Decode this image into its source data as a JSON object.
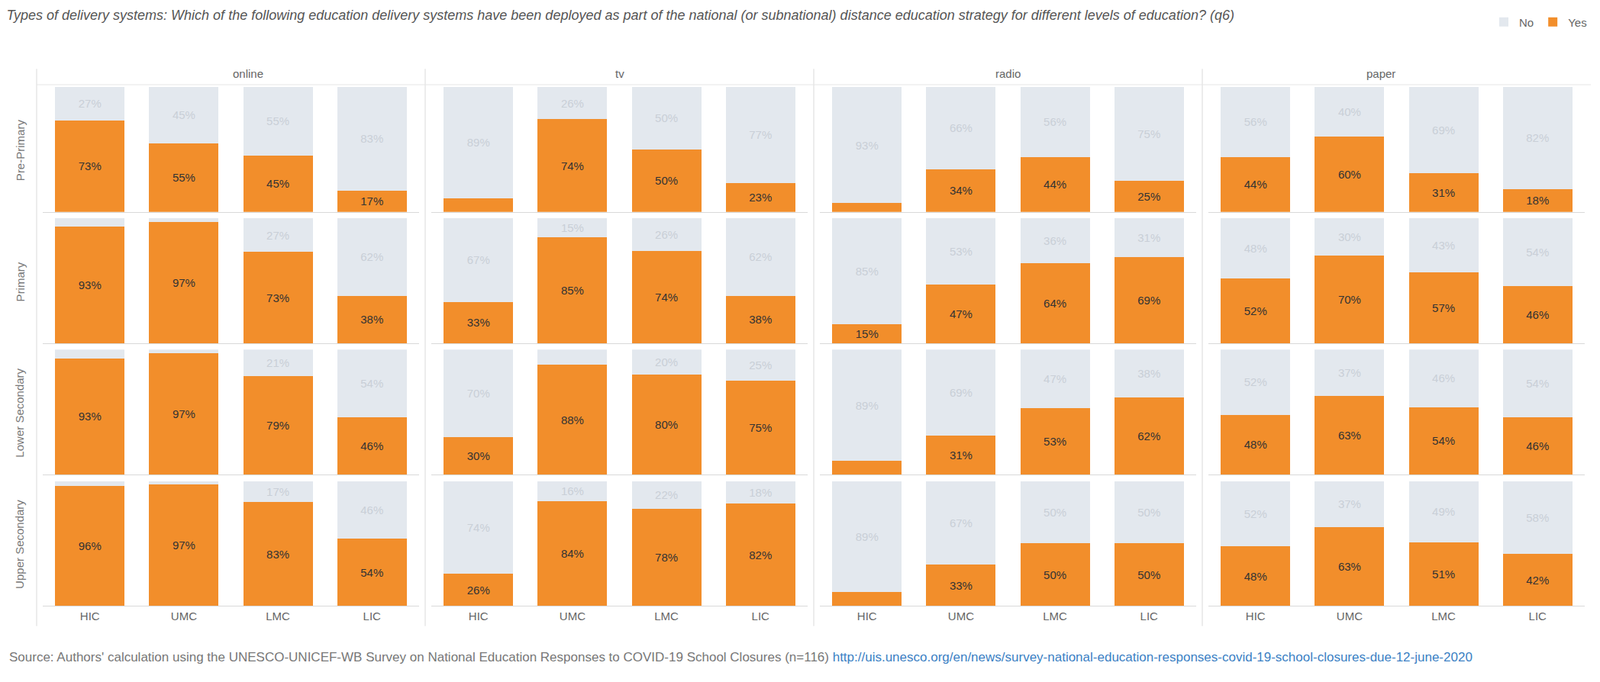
{
  "chart_data": {
    "type": "bar",
    "title": "Types of delivery systems: Which of the following education delivery systems have been deployed as part of the national (or subnational) distance education strategy for different levels of education? (q6)",
    "source": "Source: Authors' calculation using the UNESCO-UNICEF-WB Survey on National Education Responses to COVID-19 School Closures (n=116)",
    "source_link": "http://uis.unesco.org/en/news/survey-national-education-responses-covid-19-school-closures-due-12-june-2020",
    "stacked": true,
    "data_labels": true,
    "legend": "top right",
    "grid": false,
    "tick_labels": "x",
    "ylim": [
      0,
      100
    ],
    "categories": [
      "HIC",
      "UMC",
      "LMC",
      "LIC"
    ],
    "facet_rows": [
      "Pre-Primary",
      "Primary",
      "Lower Secondary",
      "Upper Secondary"
    ],
    "facet_columns": [
      "online",
      "tv",
      "radio",
      "paper"
    ],
    "panels": [
      {
        "row": "Pre-Primary",
        "column": "online",
        "series": [
          {
            "name": "Yes",
            "color": "#f28e2b",
            "values": [
              73,
              55,
              45,
              17
            ],
            "value_labels": [
              "73%",
              "55%",
              "45%",
              "17%"
            ]
          },
          {
            "name": "No",
            "color": "#e3e8ee",
            "values": [
              27,
              45,
              55,
              83
            ],
            "value_labels": [
              "27%",
              "45%",
              "55%",
              "83%"
            ]
          }
        ]
      },
      {
        "row": "Pre-Primary",
        "column": "tv",
        "series": [
          {
            "name": "Yes",
            "color": "#f28e2b",
            "values": [
              11,
              74,
              50,
              23
            ],
            "value_labels": [
              null,
              "74%",
              "50%",
              "23%"
            ]
          },
          {
            "name": "No",
            "color": "#e3e8ee",
            "values": [
              89,
              26,
              50,
              77
            ],
            "value_labels": [
              "89%",
              "26%",
              "50%",
              "77%"
            ]
          }
        ]
      },
      {
        "row": "Pre-Primary",
        "column": "radio",
        "series": [
          {
            "name": "Yes",
            "color": "#f28e2b",
            "values": [
              7,
              34,
              44,
              25
            ],
            "value_labels": [
              null,
              "34%",
              "44%",
              "25%"
            ]
          },
          {
            "name": "No",
            "color": "#e3e8ee",
            "values": [
              93,
              66,
              56,
              75
            ],
            "value_labels": [
              "93%",
              "66%",
              "56%",
              "75%"
            ]
          }
        ]
      },
      {
        "row": "Pre-Primary",
        "column": "paper",
        "series": [
          {
            "name": "Yes",
            "color": "#f28e2b",
            "values": [
              44,
              60,
              31,
              18
            ],
            "value_labels": [
              "44%",
              "60%",
              "31%",
              "18%"
            ]
          },
          {
            "name": "No",
            "color": "#e3e8ee",
            "values": [
              56,
              40,
              69,
              82
            ],
            "value_labels": [
              "56%",
              "40%",
              "69%",
              "82%"
            ]
          }
        ]
      },
      {
        "row": "Primary",
        "column": "online",
        "series": [
          {
            "name": "Yes",
            "color": "#f28e2b",
            "values": [
              93,
              97,
              73,
              38
            ],
            "value_labels": [
              "93%",
              "97%",
              "73%",
              "38%"
            ]
          },
          {
            "name": "No",
            "color": "#e3e8ee",
            "values": [
              7,
              3,
              27,
              62
            ],
            "value_labels": [
              null,
              null,
              "27%",
              "62%"
            ]
          }
        ]
      },
      {
        "row": "Primary",
        "column": "tv",
        "series": [
          {
            "name": "Yes",
            "color": "#f28e2b",
            "values": [
              33,
              85,
              74,
              38
            ],
            "value_labels": [
              "33%",
              "85%",
              "74%",
              "38%"
            ]
          },
          {
            "name": "No",
            "color": "#e3e8ee",
            "values": [
              67,
              15,
              26,
              62
            ],
            "value_labels": [
              "67%",
              "15%",
              "26%",
              "62%"
            ]
          }
        ]
      },
      {
        "row": "Primary",
        "column": "radio",
        "series": [
          {
            "name": "Yes",
            "color": "#f28e2b",
            "values": [
              15,
              47,
              64,
              69
            ],
            "value_labels": [
              "15%",
              "47%",
              "64%",
              "69%"
            ]
          },
          {
            "name": "No",
            "color": "#e3e8ee",
            "values": [
              85,
              53,
              36,
              31
            ],
            "value_labels": [
              "85%",
              "53%",
              "36%",
              "31%"
            ]
          }
        ]
      },
      {
        "row": "Primary",
        "column": "paper",
        "series": [
          {
            "name": "Yes",
            "color": "#f28e2b",
            "values": [
              52,
              70,
              57,
              46
            ],
            "value_labels": [
              "52%",
              "70%",
              "57%",
              "46%"
            ]
          },
          {
            "name": "No",
            "color": "#e3e8ee",
            "values": [
              48,
              30,
              43,
              54
            ],
            "value_labels": [
              "48%",
              "30%",
              "43%",
              "54%"
            ]
          }
        ]
      },
      {
        "row": "Lower Secondary",
        "column": "online",
        "series": [
          {
            "name": "Yes",
            "color": "#f28e2b",
            "values": [
              93,
              97,
              79,
              46
            ],
            "value_labels": [
              "93%",
              "97%",
              "79%",
              "46%"
            ]
          },
          {
            "name": "No",
            "color": "#e3e8ee",
            "values": [
              7,
              3,
              21,
              54
            ],
            "value_labels": [
              null,
              null,
              "21%",
              "54%"
            ]
          }
        ]
      },
      {
        "row": "Lower Secondary",
        "column": "tv",
        "series": [
          {
            "name": "Yes",
            "color": "#f28e2b",
            "values": [
              30,
              88,
              80,
              75
            ],
            "value_labels": [
              "30%",
              "88%",
              "80%",
              "75%"
            ]
          },
          {
            "name": "No",
            "color": "#e3e8ee",
            "values": [
              70,
              12,
              20,
              25
            ],
            "value_labels": [
              "70%",
              null,
              "20%",
              "25%"
            ]
          }
        ]
      },
      {
        "row": "Lower Secondary",
        "column": "radio",
        "series": [
          {
            "name": "Yes",
            "color": "#f28e2b",
            "values": [
              11,
              31,
              53,
              62
            ],
            "value_labels": [
              null,
              "31%",
              "53%",
              "62%"
            ]
          },
          {
            "name": "No",
            "color": "#e3e8ee",
            "values": [
              89,
              69,
              47,
              38
            ],
            "value_labels": [
              "89%",
              "69%",
              "47%",
              "38%"
            ]
          }
        ]
      },
      {
        "row": "Lower Secondary",
        "column": "paper",
        "series": [
          {
            "name": "Yes",
            "color": "#f28e2b",
            "values": [
              48,
              63,
              54,
              46
            ],
            "value_labels": [
              "48%",
              "63%",
              "54%",
              "46%"
            ]
          },
          {
            "name": "No",
            "color": "#e3e8ee",
            "values": [
              52,
              37,
              46,
              54
            ],
            "value_labels": [
              "52%",
              "37%",
              "46%",
              "54%"
            ]
          }
        ]
      },
      {
        "row": "Upper Secondary",
        "column": "online",
        "series": [
          {
            "name": "Yes",
            "color": "#f28e2b",
            "values": [
              96,
              97,
              83,
              54
            ],
            "value_labels": [
              "96%",
              "97%",
              "83%",
              "54%"
            ]
          },
          {
            "name": "No",
            "color": "#e3e8ee",
            "values": [
              4,
              3,
              17,
              46
            ],
            "value_labels": [
              null,
              null,
              "17%",
              "46%"
            ]
          }
        ]
      },
      {
        "row": "Upper Secondary",
        "column": "tv",
        "series": [
          {
            "name": "Yes",
            "color": "#f28e2b",
            "values": [
              26,
              84,
              78,
              82
            ],
            "value_labels": [
              "26%",
              "84%",
              "78%",
              "82%"
            ]
          },
          {
            "name": "No",
            "color": "#e3e8ee",
            "values": [
              74,
              16,
              22,
              18
            ],
            "value_labels": [
              "74%",
              "16%",
              "22%",
              "18%"
            ]
          }
        ]
      },
      {
        "row": "Upper Secondary",
        "column": "radio",
        "series": [
          {
            "name": "Yes",
            "color": "#f28e2b",
            "values": [
              11,
              33,
              50,
              50
            ],
            "value_labels": [
              null,
              "33%",
              "50%",
              "50%"
            ]
          },
          {
            "name": "No",
            "color": "#e3e8ee",
            "values": [
              89,
              67,
              50,
              50
            ],
            "value_labels": [
              "89%",
              "67%",
              "50%",
              "50%"
            ]
          }
        ]
      },
      {
        "row": "Upper Secondary",
        "column": "paper",
        "series": [
          {
            "name": "Yes",
            "color": "#f28e2b",
            "values": [
              48,
              63,
              51,
              42
            ],
            "value_labels": [
              "48%",
              "63%",
              "51%",
              "42%"
            ]
          },
          {
            "name": "No",
            "color": "#e3e8ee",
            "values": [
              52,
              37,
              49,
              58
            ],
            "value_labels": [
              "52%",
              "37%",
              "49%",
              "58%"
            ]
          }
        ]
      }
    ]
  }
}
